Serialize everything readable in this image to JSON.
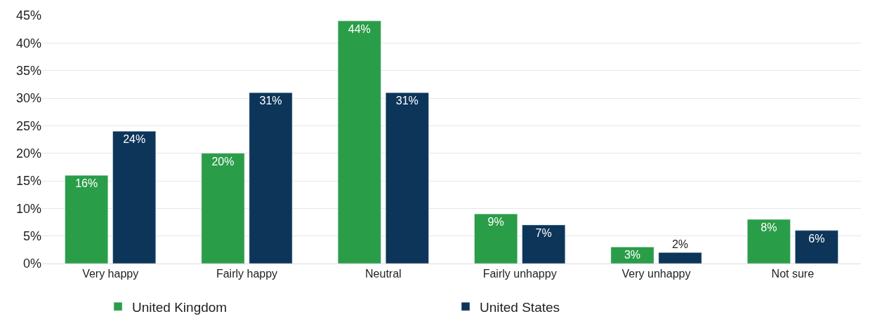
{
  "chart_data": {
    "type": "bar",
    "categories": [
      "Very happy",
      "Fairly happy",
      "Neutral",
      "Fairly unhappy",
      "Very unhappy",
      "Not sure"
    ],
    "series": [
      {
        "name": "United Kingdom",
        "color": "#2a9d48",
        "values": [
          16,
          20,
          44,
          9,
          3,
          8
        ],
        "value_labels": [
          "16%",
          "20%",
          "44%",
          "9%",
          "3%",
          "8%"
        ]
      },
      {
        "name": "United States",
        "color": "#0c3559",
        "values": [
          24,
          31,
          31,
          7,
          2,
          6
        ],
        "value_labels": [
          "24%",
          "31%",
          "31%",
          "7%",
          "2%",
          "6%"
        ]
      }
    ],
    "ylim": [
      0,
      45
    ],
    "yticks": [
      {
        "value": 0,
        "label": "0%"
      },
      {
        "value": 5,
        "label": "5%"
      },
      {
        "value": 10,
        "label": "10%"
      },
      {
        "value": 15,
        "label": "15%"
      },
      {
        "value": 20,
        "label": "20%"
      },
      {
        "value": 25,
        "label": "25%"
      },
      {
        "value": 30,
        "label": "30%"
      },
      {
        "value": 35,
        "label": "35%"
      },
      {
        "value": 40,
        "label": "40%"
      },
      {
        "value": 45,
        "label": "45%"
      }
    ],
    "grid": "y",
    "legend": "bottom"
  }
}
